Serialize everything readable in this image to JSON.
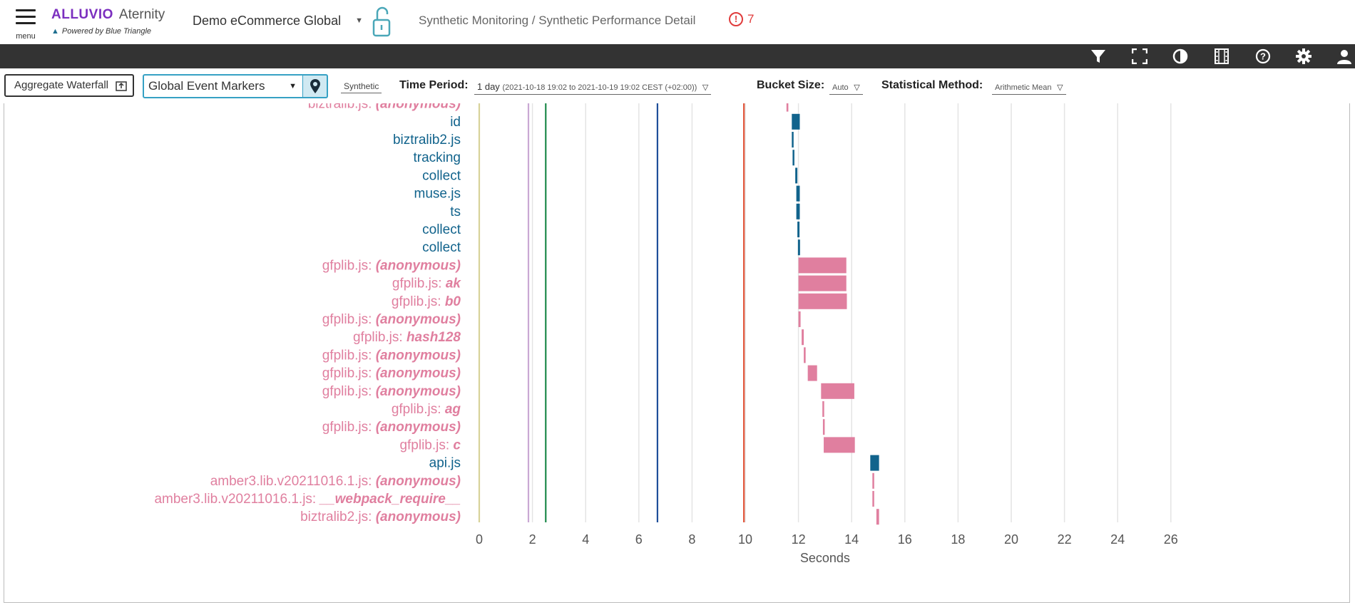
{
  "header": {
    "menu_label": "menu",
    "brand_name": "ALLUVIO",
    "brand_product": "Aternity",
    "brand_tagline": "Powered by Blue Triangle",
    "app_selector": "Demo eCommerce Global",
    "breadcrumb": "Synthetic Monitoring / Synthetic Performance Detail",
    "alert_count": "7"
  },
  "toolbar": {
    "icons": [
      "filter-icon",
      "fullscreen-icon",
      "contrast-icon",
      "film-icon",
      "help-icon",
      "gear-icon",
      "user-icon"
    ]
  },
  "filters": {
    "aggregate_waterfall": "Aggregate Waterfall",
    "global_event_markers": "Global Event Markers",
    "synthetic_tab": "Synthetic",
    "time_period_label": "Time Period:",
    "time_period_value": "1 day",
    "time_period_range": "(2021-10-18 19:02 to 2021-10-19 19:02 CEST (+02:00))",
    "bucket_size_label": "Bucket Size:",
    "bucket_size_value": "Auto",
    "stat_method_label": "Statistical Method:",
    "stat_method_value": "Arithmetic Mean"
  },
  "colors": {
    "pink": "#e07f9f",
    "blue": "#11638c",
    "accent": "#36a1c4",
    "dark_toolbar": "#333333",
    "alert_red": "#e03b3b"
  },
  "chart_data": {
    "type": "bar",
    "subtype": "horizontal-waterfall",
    "xlabel": "Seconds",
    "xlim": [
      0,
      26
    ],
    "xticks": [
      0,
      2,
      4,
      6,
      8,
      10,
      12,
      14,
      16,
      18,
      20,
      22,
      24,
      26
    ],
    "grid": true,
    "markers": [
      {
        "x": 0.0,
        "color": "#d8d39a"
      },
      {
        "x": 1.85,
        "color": "#c9a8d4"
      },
      {
        "x": 2.5,
        "color": "#1f8a4c"
      },
      {
        "x": 6.7,
        "color": "#1f4f9a"
      },
      {
        "x": 9.95,
        "color": "#e2553a"
      }
    ],
    "rows": [
      {
        "file": "biztralib.js",
        "fn": "(anonymous)",
        "kind": "script",
        "start": 11.55,
        "end": 11.62
      },
      {
        "file": "id",
        "fn": "",
        "kind": "request",
        "start": 11.75,
        "end": 12.05
      },
      {
        "file": "biztralib2.js",
        "fn": "",
        "kind": "request",
        "start": 11.75,
        "end": 11.8
      },
      {
        "file": "tracking",
        "fn": "",
        "kind": "request",
        "start": 11.78,
        "end": 11.84
      },
      {
        "file": "collect",
        "fn": "",
        "kind": "request",
        "start": 11.88,
        "end": 11.96
      },
      {
        "file": "muse.js",
        "fn": "",
        "kind": "request",
        "start": 11.92,
        "end": 12.05
      },
      {
        "file": "ts",
        "fn": "",
        "kind": "request",
        "start": 11.92,
        "end": 12.05
      },
      {
        "file": "collect",
        "fn": "",
        "kind": "request",
        "start": 11.96,
        "end": 12.04
      },
      {
        "file": "collect",
        "fn": "",
        "kind": "request",
        "start": 11.98,
        "end": 12.06
      },
      {
        "file": "gfplib.js",
        "fn": "(anonymous)",
        "kind": "script",
        "start": 12.0,
        "end": 13.8
      },
      {
        "file": "gfplib.js",
        "fn": "ak",
        "kind": "script",
        "start": 12.0,
        "end": 13.8
      },
      {
        "file": "gfplib.js",
        "fn": "b0",
        "kind": "script",
        "start": 12.0,
        "end": 13.82
      },
      {
        "file": "gfplib.js",
        "fn": "(anonymous)",
        "kind": "script",
        "start": 12.0,
        "end": 12.08
      },
      {
        "file": "gfplib.js",
        "fn": "hash128",
        "kind": "script",
        "start": 12.12,
        "end": 12.2
      },
      {
        "file": "gfplib.js",
        "fn": "(anonymous)",
        "kind": "script",
        "start": 12.2,
        "end": 12.27
      },
      {
        "file": "gfplib.js",
        "fn": "(anonymous)",
        "kind": "script",
        "start": 12.35,
        "end": 12.7
      },
      {
        "file": "gfplib.js",
        "fn": "(anonymous)",
        "kind": "script",
        "start": 12.85,
        "end": 14.1
      },
      {
        "file": "gfplib.js",
        "fn": "ag",
        "kind": "script",
        "start": 12.9,
        "end": 12.96
      },
      {
        "file": "gfplib.js",
        "fn": "(anonymous)",
        "kind": "script",
        "start": 12.92,
        "end": 12.98
      },
      {
        "file": "gfplib.js",
        "fn": "c",
        "kind": "script",
        "start": 12.95,
        "end": 14.12
      },
      {
        "file": "api.js",
        "fn": "",
        "kind": "request",
        "start": 14.7,
        "end": 15.03
      },
      {
        "file": "amber3.lib.v20211016.1.js",
        "fn": "(anonymous)",
        "kind": "script",
        "start": 14.78,
        "end": 14.84
      },
      {
        "file": "amber3.lib.v20211016.1.js",
        "fn": "__webpack_require__",
        "kind": "script",
        "start": 14.78,
        "end": 14.84
      },
      {
        "file": "biztralib2.js",
        "fn": "(anonymous)",
        "kind": "script",
        "start": 14.93,
        "end": 15.03
      }
    ]
  }
}
